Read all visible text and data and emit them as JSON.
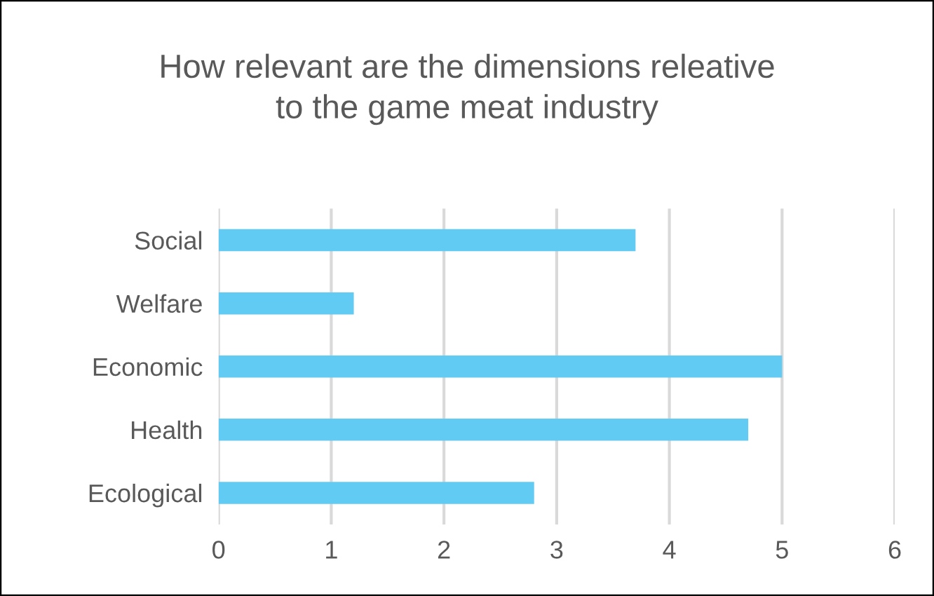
{
  "chart_data": {
    "type": "bar",
    "orientation": "horizontal",
    "title": "How relevant are the dimensions releative\nto the game meat industry",
    "categories": [
      "Social",
      "Welfare",
      "Economic",
      "Health",
      "Ecological"
    ],
    "values": [
      3.7,
      1.2,
      5.0,
      4.7,
      2.8
    ],
    "color": "#61cbf3",
    "xlim": [
      0,
      6
    ],
    "xticks": [
      0,
      1,
      2,
      3,
      4,
      5,
      6
    ],
    "grid": "x",
    "legend": false
  }
}
